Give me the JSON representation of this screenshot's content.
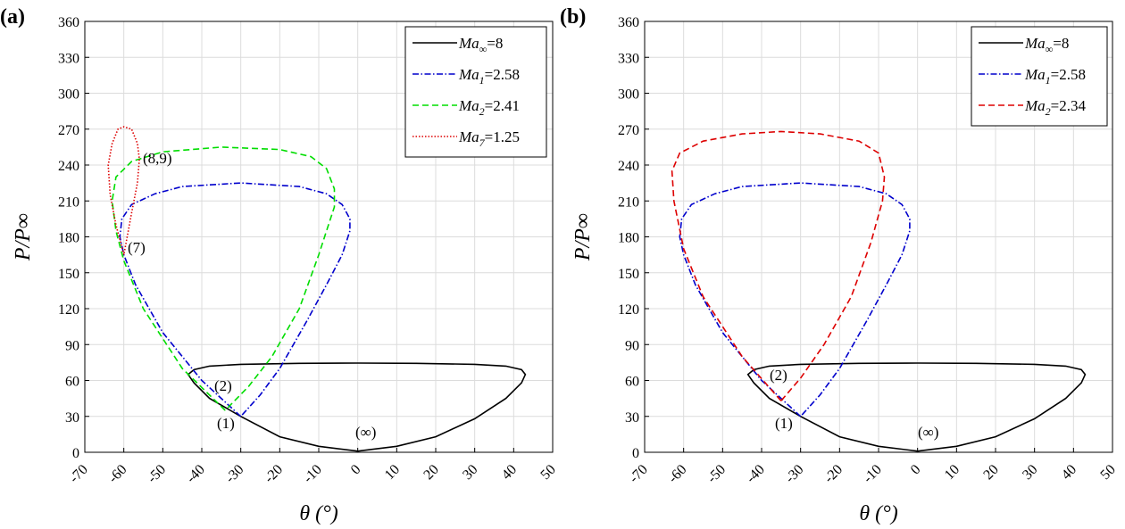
{
  "chart_data": [
    {
      "type": "line",
      "panel_label": "(a)",
      "xlabel": "θ (°)",
      "ylabel": "P/P∞",
      "xlim": [
        -70,
        50
      ],
      "ylim": [
        0,
        360
      ],
      "xticks": [
        -70,
        -60,
        -50,
        -40,
        -30,
        -20,
        -10,
        0,
        10,
        20,
        30,
        40,
        50
      ],
      "yticks": [
        0,
        30,
        60,
        90,
        120,
        150,
        180,
        210,
        240,
        270,
        300,
        330,
        360
      ],
      "grid": true,
      "legend": "upper right",
      "annotations": [
        "(8,9)",
        "(7)",
        "(2)",
        "(1)",
        "(∞)"
      ],
      "series": [
        {
          "name": "Ma∞=8",
          "color": "#000000",
          "style": "solid",
          "x": [
            0,
            10,
            20,
            30,
            38,
            42,
            43,
            42,
            38,
            30,
            15,
            0,
            -15,
            -30,
            -38,
            -42,
            -43.5,
            -42,
            -38,
            -30,
            -20,
            -10,
            0
          ],
          "values": [
            1,
            5,
            13,
            28,
            45,
            58,
            65,
            69,
            72,
            73.5,
            74.3,
            74.5,
            74.3,
            73.5,
            72,
            69,
            65,
            58,
            45,
            30,
            13,
            5,
            1
          ]
        },
        {
          "name": "Ma1=2.58",
          "color": "#0000cc",
          "style": "dashdot",
          "x": [
            -30,
            -40,
            -50,
            -57,
            -60,
            -61,
            -60.5,
            -58,
            -52,
            -45,
            -30,
            -15,
            -8,
            -4,
            -2,
            -2,
            -4,
            -8,
            -13,
            -20,
            -25,
            -30
          ],
          "values": [
            30,
            60,
            100,
            140,
            165,
            180,
            195,
            207,
            216,
            222,
            225,
            222,
            216,
            207,
            195,
            185,
            165,
            140,
            110,
            70,
            48,
            30
          ]
        },
        {
          "name": "Ma2=2.41",
          "color": "#00dd00",
          "style": "dashed",
          "x": [
            -34,
            -45,
            -55,
            -60,
            -62,
            -63,
            -62,
            -58,
            -50,
            -35,
            -20,
            -12,
            -8,
            -6,
            -6,
            -8,
            -10,
            -15,
            -22,
            -28,
            -34
          ],
          "values": [
            35,
            70,
            120,
            160,
            185,
            210,
            230,
            243,
            251,
            255,
            253,
            247,
            237,
            220,
            205,
            185,
            165,
            120,
            80,
            55,
            35
          ]
        },
        {
          "name": "Ma7=1.25",
          "color": "#dd0000",
          "style": "dotted",
          "x": [
            -60,
            -62,
            -63.5,
            -64,
            -63,
            -61.5,
            -60,
            -58,
            -56.5,
            -56,
            -56.5,
            -58,
            -60
          ],
          "values": [
            165,
            190,
            215,
            240,
            258,
            270,
            272,
            270,
            258,
            245,
            225,
            200,
            165
          ]
        }
      ]
    },
    {
      "type": "line",
      "panel_label": "(b)",
      "xlabel": "θ (°)",
      "ylabel": "P/P∞",
      "xlim": [
        -70,
        50
      ],
      "ylim": [
        0,
        360
      ],
      "xticks": [
        -70,
        -60,
        -50,
        -40,
        -30,
        -20,
        -10,
        0,
        10,
        20,
        30,
        40,
        50
      ],
      "yticks": [
        0,
        30,
        60,
        90,
        120,
        150,
        180,
        210,
        240,
        270,
        300,
        330,
        360
      ],
      "grid": true,
      "legend": "upper right",
      "annotations": [
        "(2)",
        "(1)",
        "(∞)"
      ],
      "series": [
        {
          "name": "Ma∞=8",
          "color": "#000000",
          "style": "solid",
          "x": [
            0,
            10,
            20,
            30,
            38,
            42,
            43,
            42,
            38,
            30,
            15,
            0,
            -15,
            -30,
            -38,
            -42,
            -43.5,
            -42,
            -38,
            -30,
            -20,
            -10,
            0
          ],
          "values": [
            1,
            5,
            13,
            28,
            45,
            58,
            65,
            69,
            72,
            73.5,
            74.3,
            74.5,
            74.3,
            73.5,
            72,
            69,
            65,
            58,
            45,
            30,
            13,
            5,
            1
          ]
        },
        {
          "name": "Ma1=2.58",
          "color": "#0000cc",
          "style": "dashdot",
          "x": [
            -30,
            -40,
            -50,
            -57,
            -60,
            -61,
            -60.5,
            -58,
            -52,
            -45,
            -30,
            -15,
            -8,
            -4,
            -2,
            -2,
            -4,
            -8,
            -13,
            -20,
            -25,
            -30
          ],
          "values": [
            30,
            60,
            100,
            140,
            165,
            180,
            195,
            207,
            216,
            222,
            225,
            222,
            216,
            207,
            195,
            185,
            165,
            140,
            110,
            70,
            48,
            30
          ]
        },
        {
          "name": "Ma2=2.34",
          "color": "#dd0000",
          "style": "dashed",
          "x": [
            -35,
            -45,
            -55,
            -60,
            -62.5,
            -63,
            -61,
            -55,
            -45,
            -35,
            -25,
            -15,
            -10,
            -8.5,
            -9,
            -12,
            -17,
            -24,
            -30,
            -35
          ],
          "values": [
            43,
            80,
            130,
            170,
            210,
            235,
            250,
            260,
            266,
            268,
            266,
            260,
            250,
            230,
            210,
            175,
            130,
            90,
            62,
            43
          ]
        }
      ]
    }
  ]
}
